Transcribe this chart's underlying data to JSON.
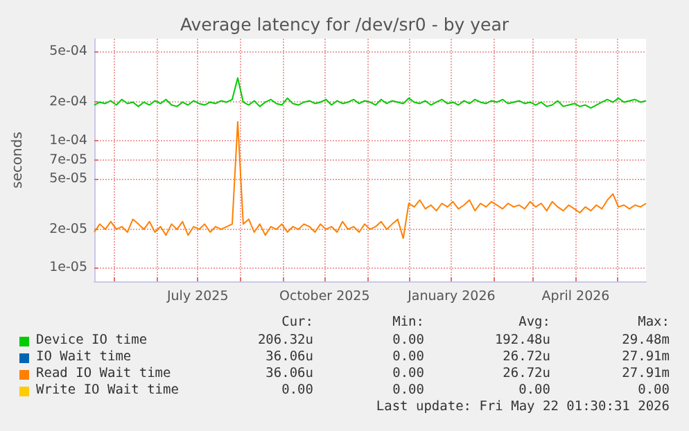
{
  "chart_data": {
    "type": "line",
    "title": "Average latency for /dev/sr0 - by year",
    "ylabel": "seconds",
    "x": [
      "2025-04-17",
      "2025-04-21",
      "2025-04-25",
      "2025-04-29",
      "2025-05-03",
      "2025-05-07",
      "2025-05-11",
      "2025-05-15",
      "2025-05-19",
      "2025-05-23",
      "2025-05-27",
      "2025-05-31",
      "2025-06-04",
      "2025-06-08",
      "2025-06-12",
      "2025-06-16",
      "2025-06-20",
      "2025-06-24",
      "2025-06-28",
      "2025-07-02",
      "2025-07-06",
      "2025-07-10",
      "2025-07-14",
      "2025-07-18",
      "2025-07-22",
      "2025-07-26",
      "2025-07-30",
      "2025-08-03",
      "2025-08-07",
      "2025-08-11",
      "2025-08-15",
      "2025-08-19",
      "2025-08-23",
      "2025-08-27",
      "2025-08-31",
      "2025-09-04",
      "2025-09-08",
      "2025-09-12",
      "2025-09-16",
      "2025-09-20",
      "2025-09-24",
      "2025-09-28",
      "2025-10-02",
      "2025-10-06",
      "2025-10-10",
      "2025-10-14",
      "2025-10-18",
      "2025-10-22",
      "2025-10-26",
      "2025-10-30",
      "2025-11-03",
      "2025-11-07",
      "2025-11-11",
      "2025-11-15",
      "2025-11-19",
      "2025-11-23",
      "2025-11-27",
      "2025-12-01",
      "2025-12-05",
      "2025-12-09",
      "2025-12-13",
      "2025-12-17",
      "2025-12-21",
      "2025-12-25",
      "2025-12-29",
      "2026-01-02",
      "2026-01-06",
      "2026-01-10",
      "2026-01-14",
      "2026-01-18",
      "2026-01-22",
      "2026-01-26",
      "2026-01-30",
      "2026-02-03",
      "2026-02-07",
      "2026-02-11",
      "2026-02-15",
      "2026-02-19",
      "2026-02-23",
      "2026-02-27",
      "2026-03-03",
      "2026-03-07",
      "2026-03-11",
      "2026-03-15",
      "2026-03-19",
      "2026-03-23",
      "2026-03-27",
      "2026-03-31",
      "2026-04-04",
      "2026-04-08",
      "2026-04-12",
      "2026-04-16",
      "2026-04-20",
      "2026-04-24",
      "2026-04-28",
      "2026-05-02",
      "2026-05-06",
      "2026-05-10",
      "2026-05-14",
      "2026-05-18",
      "2026-05-22"
    ],
    "series": [
      {
        "name": "Device IO time",
        "color": "#00cc00",
        "values": [
          0.00019,
          0.0002,
          0.000195,
          0.000205,
          0.00019,
          0.00021,
          0.000195,
          0.0002,
          0.000185,
          0.0002,
          0.00019,
          0.000205,
          0.000195,
          0.00021,
          0.00019,
          0.000185,
          0.0002,
          0.00019,
          0.000205,
          0.000195,
          0.00019,
          0.0002,
          0.000195,
          0.000205,
          0.0002,
          0.00021,
          0.00031,
          0.0002,
          0.00019,
          0.000205,
          0.000185,
          0.0002,
          0.00021,
          0.000195,
          0.00019,
          0.000215,
          0.000195,
          0.00019,
          0.0002,
          0.000205,
          0.000195,
          0.0002,
          0.00021,
          0.00019,
          0.000205,
          0.000195,
          0.0002,
          0.00021,
          0.000195,
          0.000205,
          0.0002,
          0.00019,
          0.00021,
          0.000195,
          0.000205,
          0.0002,
          0.000195,
          0.000215,
          0.0002,
          0.000195,
          0.000205,
          0.00019,
          0.0002,
          0.00021,
          0.000195,
          0.0002,
          0.00019,
          0.000205,
          0.000195,
          0.00021,
          0.0002,
          0.000195,
          0.000205,
          0.0002,
          0.00021,
          0.000195,
          0.0002,
          0.000205,
          0.000195,
          0.0002,
          0.00019,
          0.0002,
          0.000185,
          0.00019,
          0.000205,
          0.000185,
          0.00019,
          0.000195,
          0.000185,
          0.00019,
          0.00018,
          0.00019,
          0.0002,
          0.00021,
          0.0002,
          0.000215,
          0.0002,
          0.000205,
          0.00021,
          0.0002,
          0.000205
        ]
      },
      {
        "name": "IO Wait time",
        "color": "#0066b3",
        "values": [
          null,
          null,
          null,
          null,
          null,
          null,
          null,
          null,
          null,
          null,
          null,
          null,
          null,
          null,
          null,
          null,
          null,
          null,
          null,
          null,
          null,
          null,
          null,
          null,
          null,
          null,
          null,
          null,
          null,
          null,
          null,
          null,
          null,
          null,
          null,
          null,
          null,
          null,
          null,
          null,
          null,
          null,
          null,
          null,
          null,
          null,
          null,
          null,
          null,
          null,
          null,
          null,
          null,
          null,
          null,
          null,
          null,
          null,
          null,
          null,
          null,
          null,
          null,
          null,
          null,
          null,
          null,
          null,
          null,
          null,
          null,
          null,
          null,
          null,
          null,
          null,
          null,
          null,
          null,
          null,
          null,
          null,
          null,
          null,
          null,
          null,
          null,
          null,
          null,
          null,
          null,
          null,
          null,
          null,
          null,
          null,
          null,
          null,
          null,
          null,
          null
        ]
      },
      {
        "name": "Read IO Wait time",
        "color": "#ff8000",
        "values": [
          1.9e-05,
          2.2e-05,
          2e-05,
          2.3e-05,
          2e-05,
          2.1e-05,
          1.9e-05,
          2.4e-05,
          2.2e-05,
          2e-05,
          2.3e-05,
          1.9e-05,
          2.1e-05,
          1.8e-05,
          2.2e-05,
          2e-05,
          2.3e-05,
          1.8e-05,
          2.1e-05,
          2e-05,
          2.2e-05,
          1.9e-05,
          2.1e-05,
          2e-05,
          2.1e-05,
          2.2e-05,
          0.00014,
          2.2e-05,
          2.4e-05,
          1.9e-05,
          2.2e-05,
          1.8e-05,
          2.1e-05,
          2e-05,
          2.2e-05,
          1.9e-05,
          2.1e-05,
          2e-05,
          2.2e-05,
          2.1e-05,
          1.9e-05,
          2.2e-05,
          2e-05,
          2.1e-05,
          1.9e-05,
          2.3e-05,
          2e-05,
          2.1e-05,
          1.9e-05,
          2.2e-05,
          2e-05,
          2.1e-05,
          2.3e-05,
          2e-05,
          2.2e-05,
          2.4e-05,
          1.7e-05,
          3.2e-05,
          3e-05,
          3.4e-05,
          2.9e-05,
          3.1e-05,
          2.8e-05,
          3.2e-05,
          3e-05,
          3.3e-05,
          2.9e-05,
          3.1e-05,
          3.4e-05,
          2.8e-05,
          3.2e-05,
          3e-05,
          3.3e-05,
          3.1e-05,
          2.9e-05,
          3.2e-05,
          3e-05,
          3.1e-05,
          2.9e-05,
          3.3e-05,
          3e-05,
          3.2e-05,
          2.8e-05,
          3.3e-05,
          3e-05,
          2.8e-05,
          3.1e-05,
          2.9e-05,
          2.7e-05,
          3e-05,
          2.8e-05,
          3.1e-05,
          2.9e-05,
          3.4e-05,
          3.8e-05,
          3e-05,
          3.1e-05,
          2.9e-05,
          3.1e-05,
          3e-05,
          3.2e-05
        ]
      },
      {
        "name": "Write IO Wait time",
        "color": "#ffcc00",
        "values": [
          null,
          null,
          null,
          null,
          null,
          null,
          null,
          null,
          null,
          null,
          null,
          null,
          null,
          null,
          null,
          null,
          null,
          null,
          null,
          null,
          null,
          null,
          null,
          null,
          null,
          null,
          null,
          null,
          null,
          null,
          null,
          null,
          null,
          null,
          null,
          null,
          null,
          null,
          null,
          null,
          null,
          null,
          null,
          null,
          null,
          null,
          null,
          null,
          null,
          null,
          null,
          null,
          null,
          null,
          null,
          null,
          null,
          null,
          null,
          null,
          null,
          null,
          null,
          null,
          null,
          null,
          null,
          null,
          null,
          null,
          null,
          null,
          null,
          null,
          null,
          null,
          null,
          null,
          null,
          null,
          null,
          null,
          null,
          null,
          null,
          null,
          null,
          null,
          null,
          null,
          null,
          null,
          null,
          null,
          null,
          null,
          null,
          null,
          null,
          null,
          null
        ]
      }
    ],
    "log": "y",
    "xlim": [
      "2025-04-17",
      "2026-05-22"
    ],
    "xticks": [
      {
        "value": "2025-05-01",
        "label": null
      },
      {
        "value": "2025-06-01",
        "label": null
      },
      {
        "value": "2025-07-01",
        "label": "July 2025"
      },
      {
        "value": "2025-08-01",
        "label": null
      },
      {
        "value": "2025-09-01",
        "label": null
      },
      {
        "value": "2025-10-01",
        "label": "October 2025"
      },
      {
        "value": "2025-11-01",
        "label": null
      },
      {
        "value": "2025-12-01",
        "label": null
      },
      {
        "value": "2026-01-01",
        "label": "January 2026"
      },
      {
        "value": "2026-02-01",
        "label": null
      },
      {
        "value": "2026-03-01",
        "label": null
      },
      {
        "value": "2026-04-01",
        "label": "April 2026"
      },
      {
        "value": "2026-05-01",
        "label": null
      }
    ],
    "ylim": [
      7.8e-06,
      0.00063
    ],
    "yticks": [
      {
        "value": 1e-05,
        "label": "1e-05"
      },
      {
        "value": 2e-05,
        "label": "2e-05"
      },
      {
        "value": 5e-05,
        "label": "5e-05"
      },
      {
        "value": 7e-05,
        "label": "7e-05"
      },
      {
        "value": 0.0001,
        "label": "1e-04"
      },
      {
        "value": 0.0002,
        "label": "2e-04"
      },
      {
        "value": 0.0005,
        "label": "5e-04"
      }
    ],
    "grid": true,
    "legend": "bottom",
    "marker": "none",
    "line_style": "solid",
    "annotations": [
      "Cur:",
      "Min:",
      "Avg:",
      "Max:",
      "206.32u",
      "0.00",
      "192.48u",
      "29.48m",
      "36.06u",
      "0.00",
      "26.72u",
      "27.91m",
      "36.06u",
      "0.00",
      "26.72u",
      "27.91m",
      "0.00",
      "0.00",
      "0.00",
      "0.00",
      "Last update: Fri May 22 01:30:31 2026"
    ]
  }
}
